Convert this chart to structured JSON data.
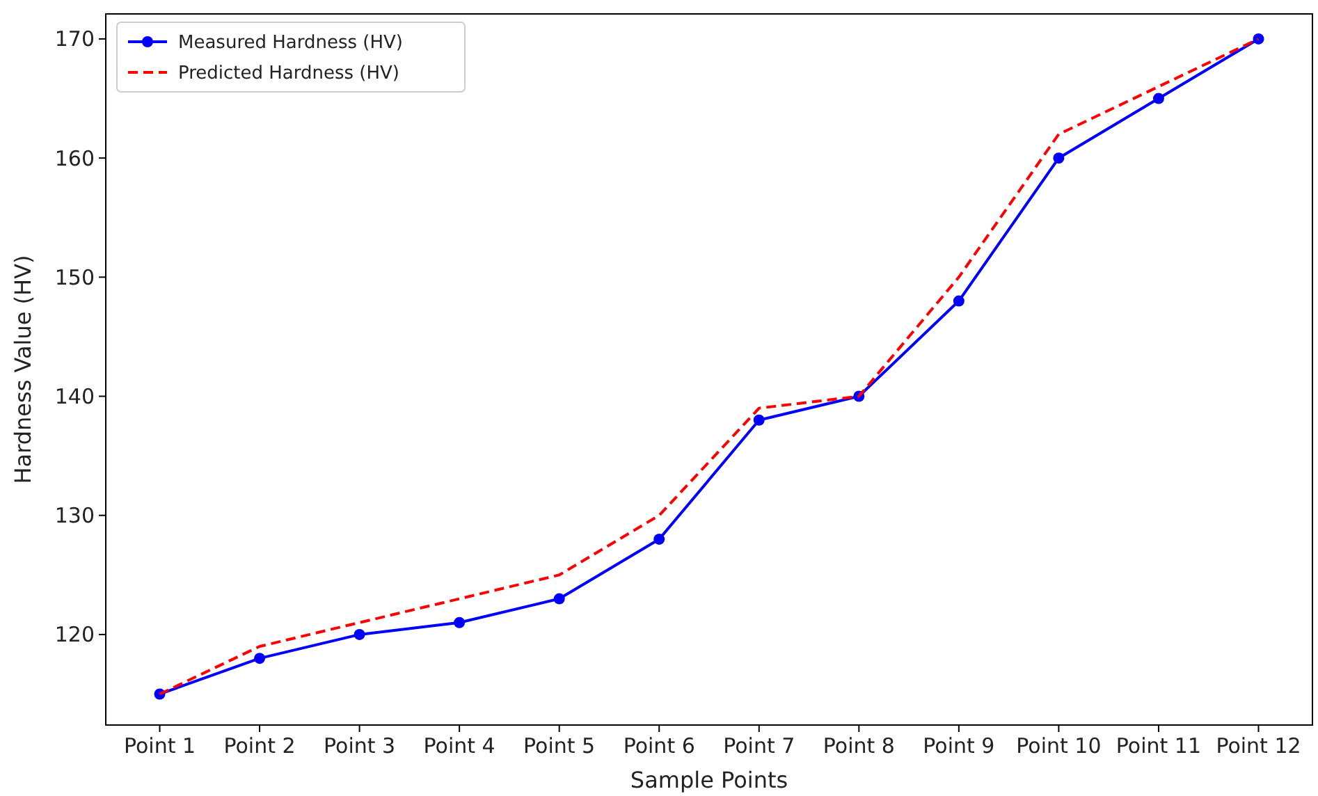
{
  "chart_data": {
    "type": "line",
    "xlabel": "Sample Points",
    "ylabel": "Hardness Value (HV)",
    "categories": [
      "Point 1",
      "Point 2",
      "Point 3",
      "Point 4",
      "Point 5",
      "Point 6",
      "Point 7",
      "Point 8",
      "Point 9",
      "Point 10",
      "Point 11",
      "Point 12"
    ],
    "series": [
      {
        "name": "Measured Hardness (HV)",
        "color": "#0000ff",
        "values": [
          115,
          118,
          120,
          121,
          123,
          128,
          138,
          140,
          148,
          160,
          165,
          170
        ],
        "marker": "circle",
        "line_style": "solid"
      },
      {
        "name": "Predicted Hardness (HV)",
        "color": "#ff0000",
        "values": [
          115,
          119,
          121,
          123,
          125,
          130,
          139,
          140,
          150,
          162,
          166,
          170
        ],
        "marker": "none",
        "line_style": "dashed"
      }
    ],
    "ylim": [
      112.4,
      172.1
    ],
    "yticks": [
      120,
      130,
      140,
      150,
      160,
      170
    ],
    "grid": false,
    "legend": "top left"
  }
}
